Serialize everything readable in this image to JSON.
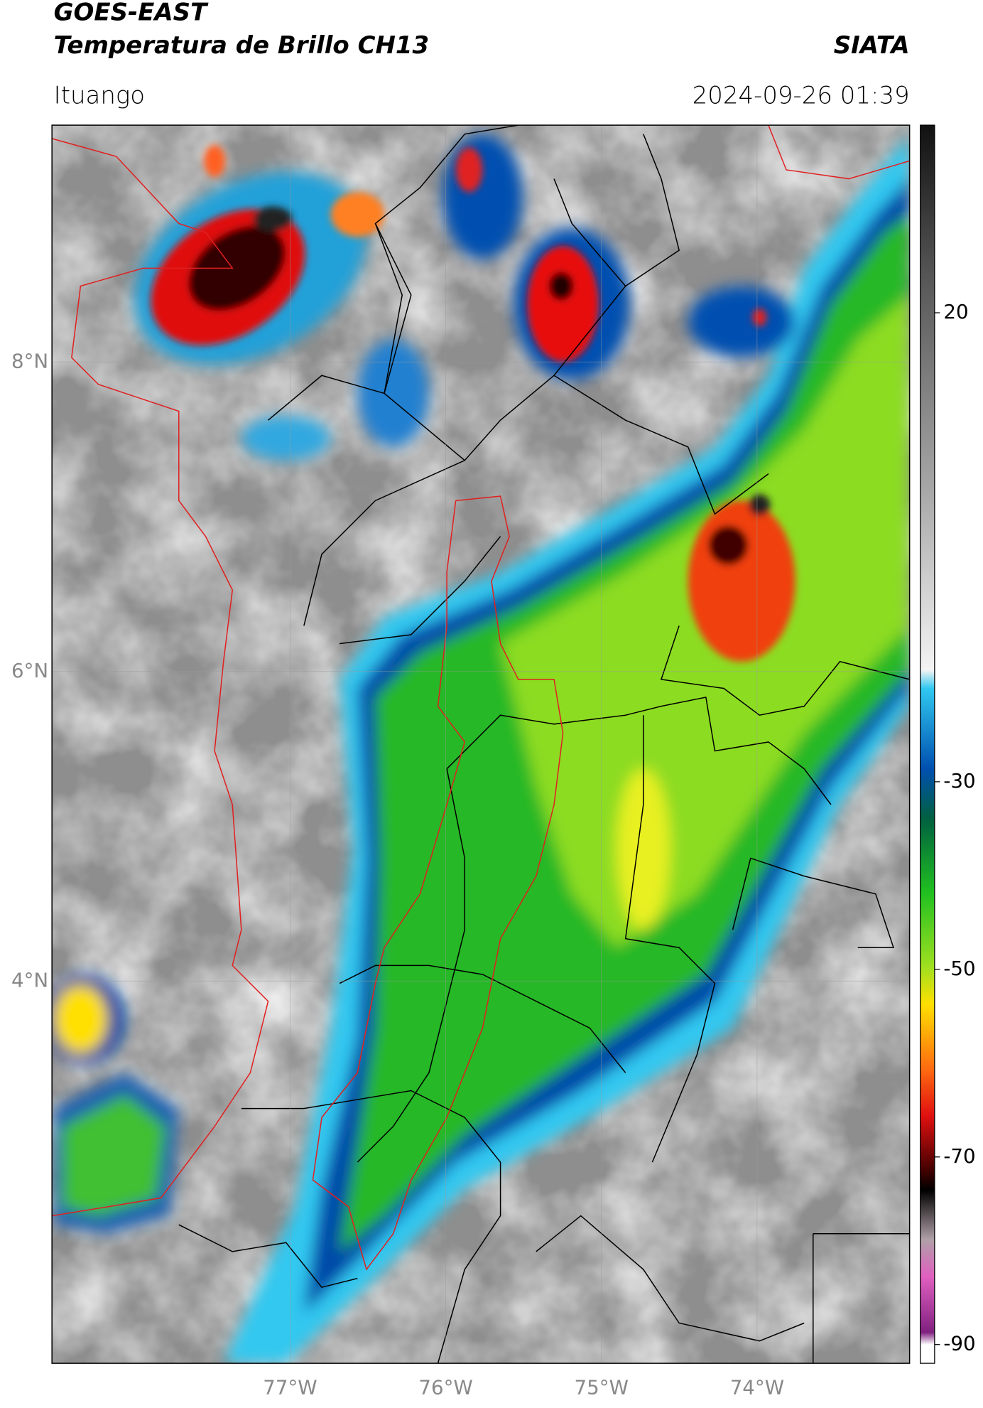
{
  "header": {
    "satellite": "GOES-EAST",
    "product": "Temperatura de Brillo CH13",
    "agency": "SIATA",
    "location": "Ituango",
    "datetime": "2024-09-26 01:39"
  },
  "map": {
    "latlim": [
      1.53,
      9.53
    ],
    "lonlim": [
      -78.53,
      -73.02
    ],
    "latticks": [
      {
        "value": 8,
        "label": "8°N"
      },
      {
        "value": 6,
        "label": "6°N"
      },
      {
        "value": 4,
        "label": "4°N"
      }
    ],
    "lonticks": [
      {
        "value": -77,
        "label": "77°W"
      },
      {
        "value": -76,
        "label": "76°W"
      },
      {
        "value": -75,
        "label": "75°W"
      },
      {
        "value": -74,
        "label": "74°W"
      }
    ]
  },
  "colorbar": {
    "lim": [
      -92,
      40
    ],
    "ticks": [
      20,
      -30,
      -50,
      -70,
      -90
    ]
  }
}
